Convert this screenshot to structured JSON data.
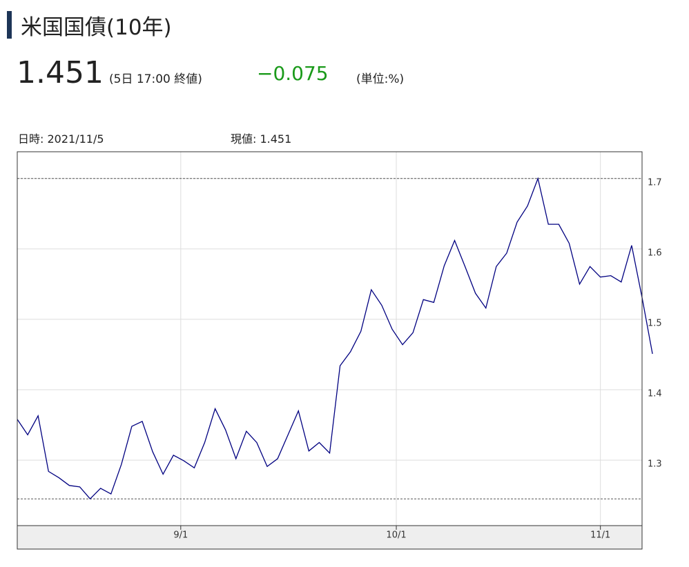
{
  "header": {
    "title": "米国国債(10年)",
    "price": "1.451",
    "time_note": "(5日 17:00 終値)",
    "change": "−0.075",
    "unit": "(単位:%)",
    "date_label": "日時: 2021/11/5",
    "current_label": "現値: 1.451"
  },
  "chart_data": {
    "type": "line",
    "color": "#000080",
    "values": [
      1.358,
      1.336,
      1.363,
      1.284,
      1.275,
      1.264,
      1.262,
      1.245,
      1.26,
      1.252,
      1.294,
      1.348,
      1.355,
      1.312,
      1.28,
      1.307,
      1.299,
      1.289,
      1.325,
      1.373,
      1.343,
      1.302,
      1.341,
      1.325,
      1.291,
      1.302,
      1.336,
      1.37,
      1.313,
      1.325,
      1.31,
      1.434,
      1.454,
      1.483,
      1.542,
      1.52,
      1.486,
      1.464,
      1.481,
      1.528,
      1.524,
      1.576,
      1.612,
      1.575,
      1.537,
      1.516,
      1.575,
      1.594,
      1.638,
      1.661,
      1.7,
      1.635,
      1.635,
      1.608,
      1.55,
      1.575,
      1.56,
      1.562,
      1.553,
      1.605,
      1.531,
      1.451
    ],
    "xlim": [
      0,
      61
    ],
    "xticks": [
      {
        "value": 15.7,
        "label": "9/1"
      },
      {
        "value": 36.4,
        "label": "10/1"
      },
      {
        "value": 56.0,
        "label": "11/1"
      }
    ],
    "ylim": [
      1.207,
      1.738
    ],
    "yticks": [
      1.3,
      1.4,
      1.5,
      1.6,
      1.7
    ],
    "grid": true
  }
}
